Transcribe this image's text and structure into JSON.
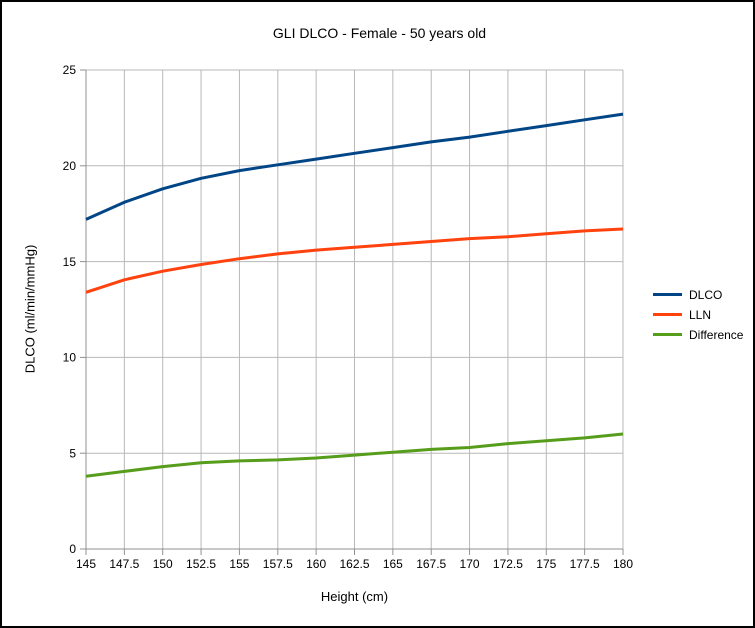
{
  "window": {
    "background_color": "#ffffff",
    "frame_border_color": "#000000"
  },
  "chart_data": {
    "type": "line",
    "title": "GLI DLCO - Female - 50 years old",
    "xlabel": "Height (cm)",
    "ylabel": "DLCO (ml/min/mmHg)",
    "xlim": [
      145,
      180
    ],
    "ylim": [
      0,
      25
    ],
    "grid": "both",
    "legend_position": "right",
    "x": [
      145,
      147.5,
      150,
      152.5,
      155,
      157.5,
      160,
      162.5,
      165,
      167.5,
      170,
      172.5,
      175,
      177.5,
      180
    ],
    "x_tick_labels": [
      "145",
      "147.5",
      "150",
      "152.5",
      "155",
      "157.5",
      "160",
      "162.5",
      "165",
      "167.5",
      "170",
      "172.5",
      "175",
      "177.5",
      "180"
    ],
    "y_ticks": [
      0,
      5,
      10,
      15,
      20,
      25
    ],
    "y_tick_labels": [
      "0",
      "5",
      "10",
      "15",
      "20",
      "25"
    ],
    "series": [
      {
        "name": "DLCO",
        "color": "#004586",
        "values": [
          17.2,
          18.1,
          18.8,
          19.35,
          19.75,
          20.05,
          20.35,
          20.65,
          20.95,
          21.25,
          21.5,
          21.8,
          22.1,
          22.4,
          22.7
        ]
      },
      {
        "name": "LLN",
        "color": "#FF420E",
        "values": [
          13.4,
          14.05,
          14.5,
          14.85,
          15.15,
          15.4,
          15.6,
          15.75,
          15.9,
          16.05,
          16.2,
          16.3,
          16.45,
          16.6,
          16.7
        ]
      },
      {
        "name": "Difference",
        "color": "#579D1C",
        "values": [
          3.8,
          4.05,
          4.3,
          4.5,
          4.6,
          4.65,
          4.75,
          4.9,
          5.05,
          5.2,
          5.3,
          5.5,
          5.65,
          5.8,
          6.0
        ]
      }
    ],
    "colors": {
      "gridline": "#b8b8b8",
      "axis": "#919191",
      "text": "#000000"
    }
  }
}
